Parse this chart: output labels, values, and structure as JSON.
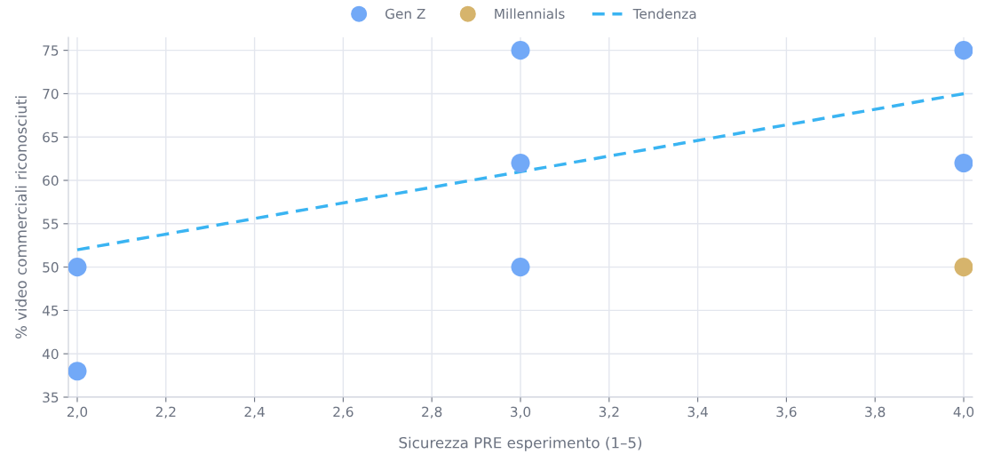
{
  "chart_data": {
    "type": "scatter",
    "xlabel": "Sicurezza PRE esperimento (1–5)",
    "ylabel": "% video commerciali riconosciuti",
    "xlim": [
      1.98,
      4.02
    ],
    "xticks": [
      {
        "value": 2.0,
        "label": "2,0"
      },
      {
        "value": 2.2,
        "label": "2,2"
      },
      {
        "value": 2.4,
        "label": "2,4"
      },
      {
        "value": 2.6,
        "label": "2,6"
      },
      {
        "value": 2.8,
        "label": "2,8"
      },
      {
        "value": 3.0,
        "label": "3,0"
      },
      {
        "value": 3.2,
        "label": "3,2"
      },
      {
        "value": 3.4,
        "label": "3,4"
      },
      {
        "value": 3.6,
        "label": "3,6"
      },
      {
        "value": 3.8,
        "label": "3,8"
      },
      {
        "value": 4.0,
        "label": "4,0"
      }
    ],
    "ylim": [
      35,
      76.5
    ],
    "yticks": [
      35,
      40,
      45,
      50,
      55,
      60,
      65,
      70,
      75
    ],
    "grid": true,
    "legend": "top",
    "marker": "circle",
    "series": [
      {
        "name": "Gen Z",
        "color": "#72a9f7",
        "x": [
          2,
          2,
          3,
          3,
          3,
          4,
          4
        ],
        "values": [
          50,
          38,
          75,
          62,
          50,
          75,
          62
        ]
      },
      {
        "name": "Millennials",
        "color": "#d6b46c",
        "x": [
          4
        ],
        "values": [
          50
        ]
      },
      {
        "name": "Tendenza",
        "type": "line",
        "line_style": "dashed",
        "marker": "none",
        "color": "#3ab4f2",
        "x": [
          2,
          4
        ],
        "values": [
          52,
          70
        ]
      }
    ]
  }
}
